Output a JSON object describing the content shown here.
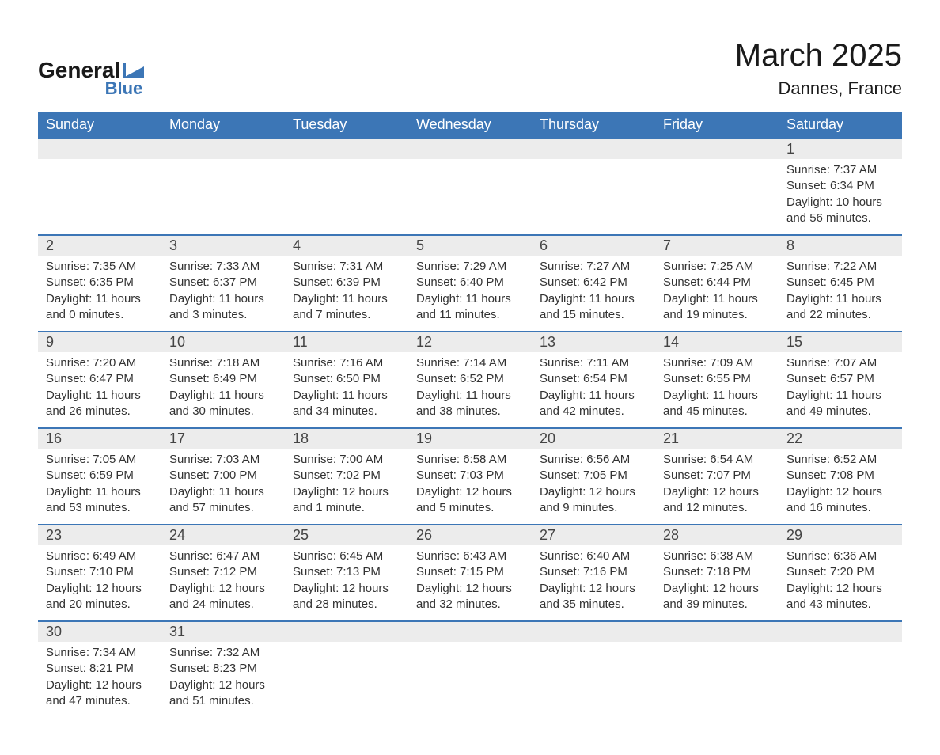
{
  "logo": {
    "text_top": "General",
    "text_bottom": "Blue"
  },
  "title": "March 2025",
  "location": "Dannes, France",
  "colors": {
    "header_bg": "#3c76b6",
    "header_fg": "#ffffff",
    "daynum_bg": "#ececec",
    "border_top": "#3c76b6",
    "body_bg": "#ffffff",
    "text": "#333333"
  },
  "typography": {
    "title_fontsize": 40,
    "location_fontsize": 22,
    "header_fontsize": 18,
    "daynum_fontsize": 18,
    "detail_fontsize": 15
  },
  "weekdays": [
    "Sunday",
    "Monday",
    "Tuesday",
    "Wednesday",
    "Thursday",
    "Friday",
    "Saturday"
  ],
  "weeks": [
    {
      "days": [
        {
          "num": "",
          "sunrise": "",
          "sunset": "",
          "daylight1": "",
          "daylight2": ""
        },
        {
          "num": "",
          "sunrise": "",
          "sunset": "",
          "daylight1": "",
          "daylight2": ""
        },
        {
          "num": "",
          "sunrise": "",
          "sunset": "",
          "daylight1": "",
          "daylight2": ""
        },
        {
          "num": "",
          "sunrise": "",
          "sunset": "",
          "daylight1": "",
          "daylight2": ""
        },
        {
          "num": "",
          "sunrise": "",
          "sunset": "",
          "daylight1": "",
          "daylight2": ""
        },
        {
          "num": "",
          "sunrise": "",
          "sunset": "",
          "daylight1": "",
          "daylight2": ""
        },
        {
          "num": "1",
          "sunrise": "Sunrise: 7:37 AM",
          "sunset": "Sunset: 6:34 PM",
          "daylight1": "Daylight: 10 hours",
          "daylight2": "and 56 minutes."
        }
      ]
    },
    {
      "days": [
        {
          "num": "2",
          "sunrise": "Sunrise: 7:35 AM",
          "sunset": "Sunset: 6:35 PM",
          "daylight1": "Daylight: 11 hours",
          "daylight2": "and 0 minutes."
        },
        {
          "num": "3",
          "sunrise": "Sunrise: 7:33 AM",
          "sunset": "Sunset: 6:37 PM",
          "daylight1": "Daylight: 11 hours",
          "daylight2": "and 3 minutes."
        },
        {
          "num": "4",
          "sunrise": "Sunrise: 7:31 AM",
          "sunset": "Sunset: 6:39 PM",
          "daylight1": "Daylight: 11 hours",
          "daylight2": "and 7 minutes."
        },
        {
          "num": "5",
          "sunrise": "Sunrise: 7:29 AM",
          "sunset": "Sunset: 6:40 PM",
          "daylight1": "Daylight: 11 hours",
          "daylight2": "and 11 minutes."
        },
        {
          "num": "6",
          "sunrise": "Sunrise: 7:27 AM",
          "sunset": "Sunset: 6:42 PM",
          "daylight1": "Daylight: 11 hours",
          "daylight2": "and 15 minutes."
        },
        {
          "num": "7",
          "sunrise": "Sunrise: 7:25 AM",
          "sunset": "Sunset: 6:44 PM",
          "daylight1": "Daylight: 11 hours",
          "daylight2": "and 19 minutes."
        },
        {
          "num": "8",
          "sunrise": "Sunrise: 7:22 AM",
          "sunset": "Sunset: 6:45 PM",
          "daylight1": "Daylight: 11 hours",
          "daylight2": "and 22 minutes."
        }
      ]
    },
    {
      "days": [
        {
          "num": "9",
          "sunrise": "Sunrise: 7:20 AM",
          "sunset": "Sunset: 6:47 PM",
          "daylight1": "Daylight: 11 hours",
          "daylight2": "and 26 minutes."
        },
        {
          "num": "10",
          "sunrise": "Sunrise: 7:18 AM",
          "sunset": "Sunset: 6:49 PM",
          "daylight1": "Daylight: 11 hours",
          "daylight2": "and 30 minutes."
        },
        {
          "num": "11",
          "sunrise": "Sunrise: 7:16 AM",
          "sunset": "Sunset: 6:50 PM",
          "daylight1": "Daylight: 11 hours",
          "daylight2": "and 34 minutes."
        },
        {
          "num": "12",
          "sunrise": "Sunrise: 7:14 AM",
          "sunset": "Sunset: 6:52 PM",
          "daylight1": "Daylight: 11 hours",
          "daylight2": "and 38 minutes."
        },
        {
          "num": "13",
          "sunrise": "Sunrise: 7:11 AM",
          "sunset": "Sunset: 6:54 PM",
          "daylight1": "Daylight: 11 hours",
          "daylight2": "and 42 minutes."
        },
        {
          "num": "14",
          "sunrise": "Sunrise: 7:09 AM",
          "sunset": "Sunset: 6:55 PM",
          "daylight1": "Daylight: 11 hours",
          "daylight2": "and 45 minutes."
        },
        {
          "num": "15",
          "sunrise": "Sunrise: 7:07 AM",
          "sunset": "Sunset: 6:57 PM",
          "daylight1": "Daylight: 11 hours",
          "daylight2": "and 49 minutes."
        }
      ]
    },
    {
      "days": [
        {
          "num": "16",
          "sunrise": "Sunrise: 7:05 AM",
          "sunset": "Sunset: 6:59 PM",
          "daylight1": "Daylight: 11 hours",
          "daylight2": "and 53 minutes."
        },
        {
          "num": "17",
          "sunrise": "Sunrise: 7:03 AM",
          "sunset": "Sunset: 7:00 PM",
          "daylight1": "Daylight: 11 hours",
          "daylight2": "and 57 minutes."
        },
        {
          "num": "18",
          "sunrise": "Sunrise: 7:00 AM",
          "sunset": "Sunset: 7:02 PM",
          "daylight1": "Daylight: 12 hours",
          "daylight2": "and 1 minute."
        },
        {
          "num": "19",
          "sunrise": "Sunrise: 6:58 AM",
          "sunset": "Sunset: 7:03 PM",
          "daylight1": "Daylight: 12 hours",
          "daylight2": "and 5 minutes."
        },
        {
          "num": "20",
          "sunrise": "Sunrise: 6:56 AM",
          "sunset": "Sunset: 7:05 PM",
          "daylight1": "Daylight: 12 hours",
          "daylight2": "and 9 minutes."
        },
        {
          "num": "21",
          "sunrise": "Sunrise: 6:54 AM",
          "sunset": "Sunset: 7:07 PM",
          "daylight1": "Daylight: 12 hours",
          "daylight2": "and 12 minutes."
        },
        {
          "num": "22",
          "sunrise": "Sunrise: 6:52 AM",
          "sunset": "Sunset: 7:08 PM",
          "daylight1": "Daylight: 12 hours",
          "daylight2": "and 16 minutes."
        }
      ]
    },
    {
      "days": [
        {
          "num": "23",
          "sunrise": "Sunrise: 6:49 AM",
          "sunset": "Sunset: 7:10 PM",
          "daylight1": "Daylight: 12 hours",
          "daylight2": "and 20 minutes."
        },
        {
          "num": "24",
          "sunrise": "Sunrise: 6:47 AM",
          "sunset": "Sunset: 7:12 PM",
          "daylight1": "Daylight: 12 hours",
          "daylight2": "and 24 minutes."
        },
        {
          "num": "25",
          "sunrise": "Sunrise: 6:45 AM",
          "sunset": "Sunset: 7:13 PM",
          "daylight1": "Daylight: 12 hours",
          "daylight2": "and 28 minutes."
        },
        {
          "num": "26",
          "sunrise": "Sunrise: 6:43 AM",
          "sunset": "Sunset: 7:15 PM",
          "daylight1": "Daylight: 12 hours",
          "daylight2": "and 32 minutes."
        },
        {
          "num": "27",
          "sunrise": "Sunrise: 6:40 AM",
          "sunset": "Sunset: 7:16 PM",
          "daylight1": "Daylight: 12 hours",
          "daylight2": "and 35 minutes."
        },
        {
          "num": "28",
          "sunrise": "Sunrise: 6:38 AM",
          "sunset": "Sunset: 7:18 PM",
          "daylight1": "Daylight: 12 hours",
          "daylight2": "and 39 minutes."
        },
        {
          "num": "29",
          "sunrise": "Sunrise: 6:36 AM",
          "sunset": "Sunset: 7:20 PM",
          "daylight1": "Daylight: 12 hours",
          "daylight2": "and 43 minutes."
        }
      ]
    },
    {
      "days": [
        {
          "num": "30",
          "sunrise": "Sunrise: 7:34 AM",
          "sunset": "Sunset: 8:21 PM",
          "daylight1": "Daylight: 12 hours",
          "daylight2": "and 47 minutes."
        },
        {
          "num": "31",
          "sunrise": "Sunrise: 7:32 AM",
          "sunset": "Sunset: 8:23 PM",
          "daylight1": "Daylight: 12 hours",
          "daylight2": "and 51 minutes."
        },
        {
          "num": "",
          "sunrise": "",
          "sunset": "",
          "daylight1": "",
          "daylight2": ""
        },
        {
          "num": "",
          "sunrise": "",
          "sunset": "",
          "daylight1": "",
          "daylight2": ""
        },
        {
          "num": "",
          "sunrise": "",
          "sunset": "",
          "daylight1": "",
          "daylight2": ""
        },
        {
          "num": "",
          "sunrise": "",
          "sunset": "",
          "daylight1": "",
          "daylight2": ""
        },
        {
          "num": "",
          "sunrise": "",
          "sunset": "",
          "daylight1": "",
          "daylight2": ""
        }
      ]
    }
  ]
}
